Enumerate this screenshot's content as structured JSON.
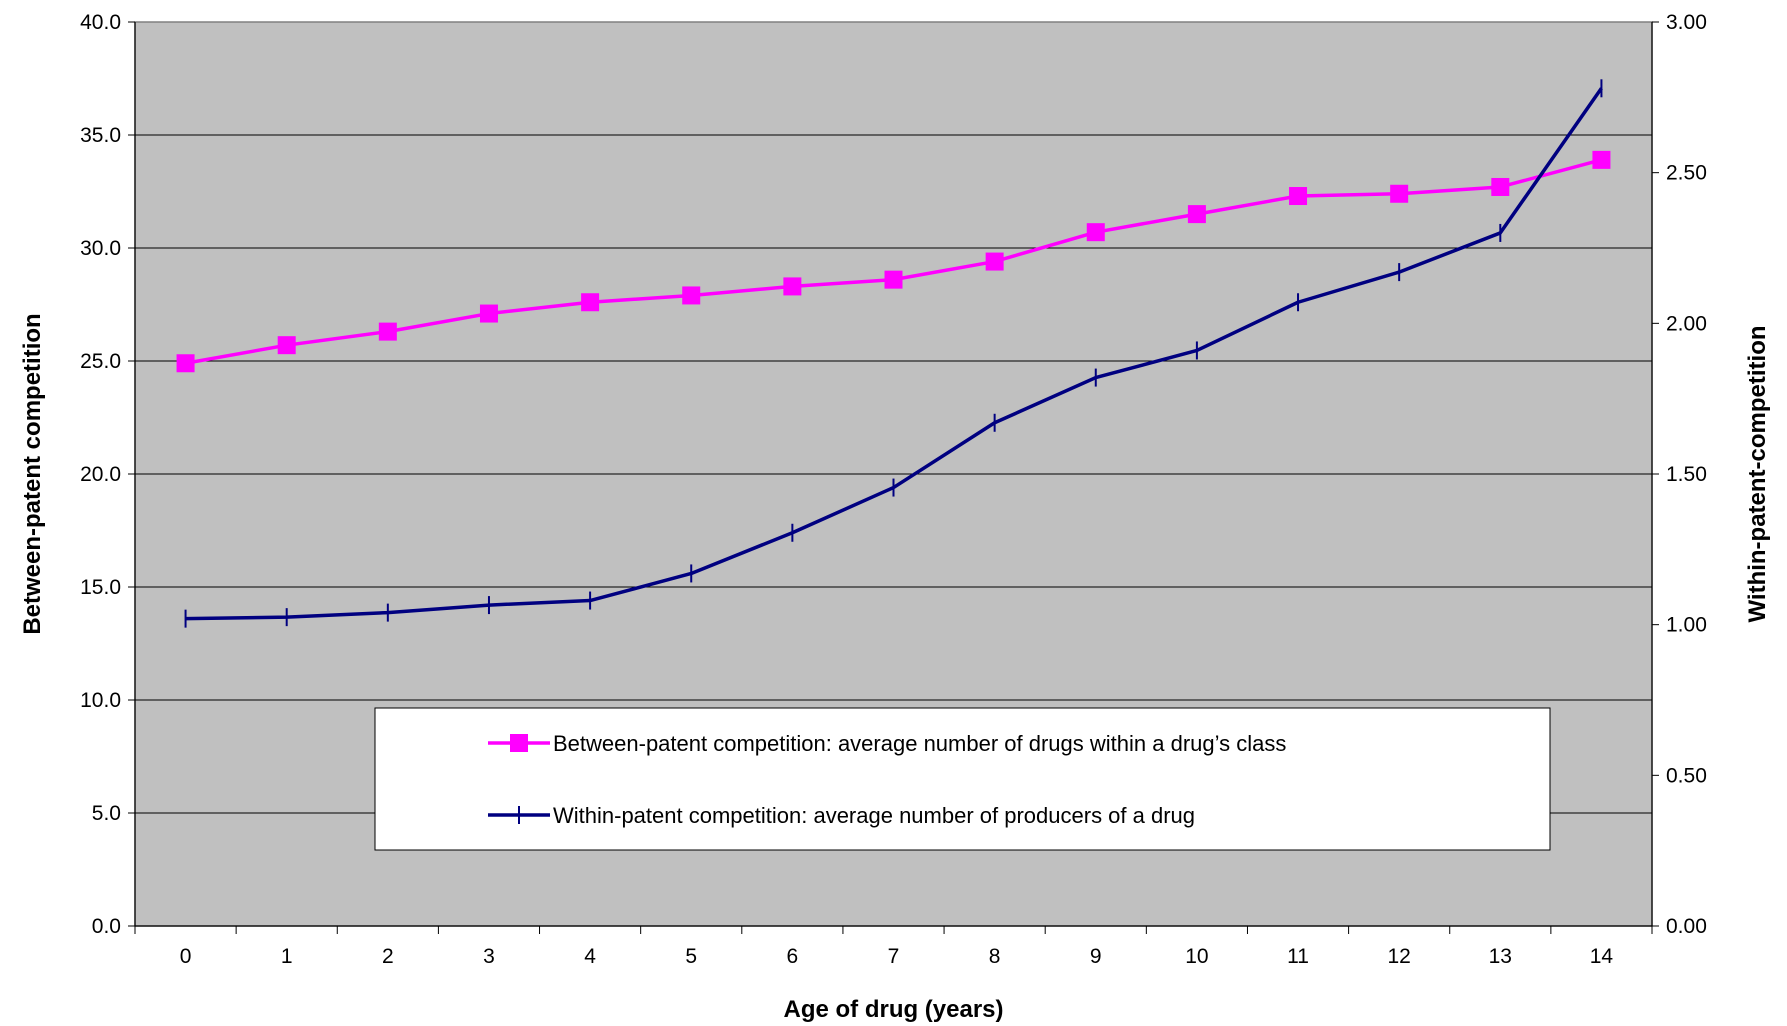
{
  "chart_data": {
    "type": "line",
    "title": "",
    "xlabel": "Age of drug (years)",
    "ylabel": "Between-patent competition",
    "ylabel_right": "Within-patent-competition",
    "x": [
      0,
      1,
      2,
      3,
      4,
      5,
      6,
      7,
      8,
      9,
      10,
      11,
      12,
      13,
      14
    ],
    "x_tick_labels": [
      "0",
      "1",
      "2",
      "3",
      "4",
      "5",
      "6",
      "7",
      "8",
      "9",
      "10",
      "11",
      "12",
      "13",
      "14"
    ],
    "ylim": [
      0,
      40
    ],
    "ylim_right": [
      0,
      3
    ],
    "y_ticks": [
      "0.0",
      "5.0",
      "10.0",
      "15.0",
      "20.0",
      "25.0",
      "30.0",
      "35.0",
      "40.0"
    ],
    "y_ticks_right": [
      "0.00",
      "0.50",
      "1.00",
      "1.50",
      "2.00",
      "2.50",
      "3.00"
    ],
    "grid": true,
    "plot_background": "#c0c0c0",
    "legend_position": "inside-bottom-center",
    "series": [
      {
        "name": "Between-patent competition: average number of drugs within a drug’s class",
        "axis": "left",
        "color": "#ff00ff",
        "marker": "square",
        "values": [
          24.9,
          25.7,
          26.3,
          27.1,
          27.6,
          27.9,
          28.3,
          28.6,
          29.4,
          30.7,
          31.5,
          32.3,
          32.4,
          32.7,
          33.9
        ]
      },
      {
        "name": "Within-patent competition: average number of producers of a drug",
        "axis": "right",
        "color": "#000080",
        "marker": "plus",
        "values": [
          1.02,
          1.025,
          1.04,
          1.065,
          1.08,
          1.17,
          1.305,
          1.455,
          1.67,
          1.82,
          1.91,
          2.07,
          2.17,
          2.3,
          2.78
        ]
      }
    ]
  }
}
